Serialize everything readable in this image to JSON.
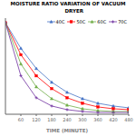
{
  "chart_data": {
    "type": "line",
    "title": "MOISTURE RATIO VARIATION OF VACUUM\n       DRYER",
    "xlabel": "TIME (MINUTE)",
    "x": [
      0,
      60,
      120,
      180,
      240,
      300,
      360,
      420,
      480
    ],
    "series": [
      {
        "name": "40C",
        "color": "#4472C4",
        "marker": "triangle",
        "values": [
          1.0,
          0.72,
          0.5,
          0.35,
          0.24,
          0.17,
          0.12,
          0.09,
          0.07
        ]
      },
      {
        "name": "50C",
        "color": "#FF0000",
        "marker": "square",
        "values": [
          1.0,
          0.65,
          0.42,
          0.28,
          0.18,
          0.12,
          0.08,
          0.06,
          0.05
        ]
      },
      {
        "name": "60C",
        "color": "#70AD47",
        "marker": "triangle",
        "values": [
          1.0,
          0.55,
          0.3,
          0.17,
          0.1,
          0.06,
          0.04,
          0.03,
          0.03
        ]
      },
      {
        "name": "70C",
        "color": "#7030A0",
        "marker": "plus",
        "values": [
          1.0,
          0.42,
          0.18,
          0.09,
          0.05,
          0.03,
          0.02,
          0.02,
          0.02
        ]
      }
    ],
    "xlim": [
      0,
      480
    ],
    "ylim": [
      0,
      1.05
    ],
    "xticks": [
      60,
      120,
      180,
      240,
      300,
      360,
      420,
      480
    ],
    "grid": false,
    "legend": "upper right",
    "tick_labels": "x"
  }
}
